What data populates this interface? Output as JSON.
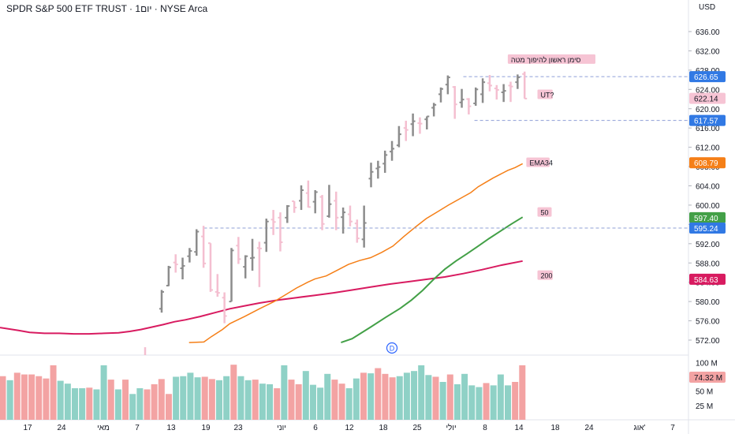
{
  "header": {
    "title": "SPDR S&P 500 ETF TRUST · 1יום · NYSE Arca",
    "currency": "USD"
  },
  "colors": {
    "up_bar": "#8c8c8c",
    "down_bar": "#f4bfd0",
    "ema34": "#f57f17",
    "ma50": "#43a047",
    "ma200": "#d81b60",
    "dashed_level": "#8f9fd6",
    "vol_up": "#8fd1c6",
    "vol_down": "#f3a3a3",
    "blue_tag": "#3179e4"
  },
  "chart_data": {
    "type": "ohlc",
    "ylim": [
      568,
      640
    ],
    "yticks": [
      "636.00",
      "632.00",
      "628.00",
      "624.00",
      "620.00",
      "616.00",
      "612.00",
      "608.00",
      "604.00",
      "600.00",
      "596.00",
      "592.00",
      "588.00",
      "584.00",
      "580.00",
      "576.00",
      "572.00"
    ],
    "xticks": [
      "17",
      "24",
      "מאי",
      "7",
      "13",
      "19",
      "23",
      "יוני",
      "6",
      "12",
      "18",
      "25",
      "יולי",
      "8",
      "14",
      "18",
      "24",
      "אוג'",
      "7"
    ],
    "bars": [
      {
        "o": 578.5,
        "h": 582.4,
        "l": 577.7,
        "c": 582.0
      },
      {
        "o": 583.3,
        "h": 587.4,
        "l": 583.2,
        "c": 587.1
      },
      {
        "o": 588.1,
        "h": 589.8,
        "l": 586.0,
        "c": 587.7
      },
      {
        "o": 586.9,
        "h": 589.1,
        "l": 584.6,
        "c": 587.4
      },
      {
        "o": 589.4,
        "h": 591.1,
        "l": 588.1,
        "c": 590.5
      },
      {
        "o": 590.3,
        "h": 595.0,
        "l": 589.5,
        "c": 594.5
      },
      {
        "o": 593.5,
        "h": 595.7,
        "l": 587.0,
        "c": 587.9
      },
      {
        "o": 592.1,
        "h": 592.1,
        "l": 582.0,
        "c": 582.4
      },
      {
        "o": 582.0,
        "h": 585.7,
        "l": 581.0,
        "c": 581.8
      },
      {
        "o": 580.8,
        "h": 581.9,
        "l": 575.5,
        "c": 577.0
      },
      {
        "o": 580.0,
        "h": 591.1,
        "l": 580.0,
        "c": 590.6
      },
      {
        "o": 591.6,
        "h": 593.4,
        "l": 587.8,
        "c": 588.8
      },
      {
        "o": 587.2,
        "h": 589.6,
        "l": 584.8,
        "c": 589.4
      },
      {
        "o": 589.0,
        "h": 593.0,
        "l": 586.4,
        "c": 589.1
      },
      {
        "o": 591.1,
        "h": 592.4,
        "l": 583.0,
        "c": 591.0
      },
      {
        "o": 592.2,
        "h": 597.2,
        "l": 590.3,
        "c": 596.6
      },
      {
        "o": 597.0,
        "h": 599.0,
        "l": 593.8,
        "c": 596.5
      },
      {
        "o": 597.4,
        "h": 598.5,
        "l": 590.4,
        "c": 592.3
      },
      {
        "o": 597.4,
        "h": 600.0,
        "l": 596.3,
        "c": 599.8
      },
      {
        "o": 600.8,
        "h": 600.8,
        "l": 598.4,
        "c": 599.5
      },
      {
        "o": 600.9,
        "h": 604.1,
        "l": 599.0,
        "c": 603.1
      },
      {
        "o": 602.5,
        "h": 605.1,
        "l": 599.5,
        "c": 599.6
      },
      {
        "o": 600.7,
        "h": 603.1,
        "l": 598.3,
        "c": 602.7
      },
      {
        "o": 601.7,
        "h": 602.1,
        "l": 594.8,
        "c": 596.1
      },
      {
        "o": 597.7,
        "h": 604.2,
        "l": 597.4,
        "c": 600.2
      },
      {
        "o": 600.9,
        "h": 602.8,
        "l": 594.8,
        "c": 597.4
      },
      {
        "o": 597.5,
        "h": 599.5,
        "l": 594.1,
        "c": 598.5
      },
      {
        "o": 598.1,
        "h": 599.9,
        "l": 595.6,
        "c": 596.6
      },
      {
        "o": 596.2,
        "h": 597.0,
        "l": 592.2,
        "c": 593.1
      },
      {
        "o": 592.9,
        "h": 599.9,
        "l": 591.2,
        "c": 596.3
      },
      {
        "o": 605.5,
        "h": 608.8,
        "l": 603.7,
        "c": 606.9
      },
      {
        "o": 607.6,
        "h": 609.2,
        "l": 605.5,
        "c": 607.9
      },
      {
        "o": 608.6,
        "h": 611.3,
        "l": 606.7,
        "c": 610.4
      },
      {
        "o": 611.1,
        "h": 613.3,
        "l": 609.2,
        "c": 611.7
      },
      {
        "o": 612.4,
        "h": 616.4,
        "l": 612.0,
        "c": 614.7
      },
      {
        "o": 616.0,
        "h": 617.5,
        "l": 613.3,
        "c": 615.6
      },
      {
        "o": 616.8,
        "h": 619.0,
        "l": 614.3,
        "c": 617.4
      },
      {
        "o": 617.0,
        "h": 618.2,
        "l": 614.8,
        "c": 616.9
      },
      {
        "o": 617.8,
        "h": 618.4,
        "l": 615.7,
        "c": 618.4
      },
      {
        "o": 620.2,
        "h": 621.2,
        "l": 618.4,
        "c": 620.8
      },
      {
        "o": 623.0,
        "h": 624.4,
        "l": 621.3,
        "c": 624.1
      },
      {
        "o": 625.0,
        "h": 626.9,
        "l": 623.0,
        "c": 626.5
      },
      {
        "o": 624.5,
        "h": 624.7,
        "l": 617.9,
        "c": 620.9
      },
      {
        "o": 621.3,
        "h": 624.1,
        "l": 620.2,
        "c": 621.9
      },
      {
        "o": 622.0,
        "h": 622.2,
        "l": 618.8,
        "c": 620.5
      },
      {
        "o": 621.1,
        "h": 624.4,
        "l": 620.6,
        "c": 624.0
      },
      {
        "o": 623.0,
        "h": 626.3,
        "l": 621.2,
        "c": 625.5
      },
      {
        "o": 625.3,
        "h": 627.0,
        "l": 623.6,
        "c": 624.8
      },
      {
        "o": 624.2,
        "h": 624.9,
        "l": 621.9,
        "c": 623.9
      },
      {
        "o": 623.4,
        "h": 625.1,
        "l": 621.4,
        "c": 623.7
      },
      {
        "o": 624.8,
        "h": 625.6,
        "l": 621.4,
        "c": 624.6
      },
      {
        "o": 625.5,
        "h": 627.1,
        "l": 624.1,
        "c": 626.5
      },
      {
        "o": 627.2,
        "h": 627.7,
        "l": 622.1,
        "c": 622.1
      }
    ],
    "ema34": [
      [
        51,
        571.5
      ],
      [
        55,
        571.6
      ],
      [
        57,
        572.7
      ],
      [
        60,
        574.2
      ],
      [
        62,
        575.4
      ],
      [
        66,
        576.9
      ],
      [
        70,
        578.5
      ],
      [
        74,
        580.0
      ],
      [
        77,
        581.4
      ],
      [
        80,
        582.8
      ],
      [
        83,
        584.0
      ],
      [
        85,
        584.7
      ],
      [
        88,
        585.3
      ],
      [
        91,
        586.5
      ],
      [
        94,
        587.7
      ],
      [
        97,
        588.5
      ],
      [
        100,
        589.1
      ],
      [
        103,
        590.2
      ],
      [
        106,
        591.5
      ],
      [
        109,
        593.5
      ],
      [
        112,
        595.4
      ],
      [
        115,
        597.2
      ],
      [
        118,
        598.6
      ],
      [
        121,
        600.0
      ],
      [
        124,
        601.3
      ],
      [
        127,
        602.6
      ],
      [
        129,
        603.8
      ],
      [
        131,
        604.7
      ],
      [
        133,
        605.6
      ],
      [
        135,
        606.4
      ],
      [
        137,
        607.2
      ],
      [
        139,
        607.8
      ],
      [
        141,
        608.6
      ]
    ],
    "ma50": [
      [
        92,
        571.5
      ],
      [
        95,
        572.3
      ],
      [
        100,
        574.7
      ],
      [
        104,
        576.7
      ],
      [
        108,
        578.6
      ],
      [
        111,
        580.3
      ],
      [
        114,
        582.3
      ],
      [
        117,
        584.6
      ],
      [
        120,
        586.7
      ],
      [
        123,
        588.4
      ],
      [
        126,
        589.9
      ],
      [
        129,
        591.5
      ],
      [
        132,
        593.1
      ],
      [
        135,
        594.6
      ],
      [
        138,
        596.1
      ],
      [
        141,
        597.5
      ]
    ],
    "ma200": [
      [
        0,
        574.6
      ],
      [
        5,
        574.0
      ],
      [
        8,
        573.6
      ],
      [
        12,
        573.4
      ],
      [
        16,
        573.4
      ],
      [
        20,
        573.3
      ],
      [
        24,
        573.3
      ],
      [
        28,
        573.4
      ],
      [
        32,
        573.5
      ],
      [
        35,
        573.8
      ],
      [
        38,
        574.2
      ],
      [
        41,
        574.7
      ],
      [
        44,
        575.2
      ],
      [
        47,
        575.8
      ],
      [
        50,
        576.2
      ],
      [
        54,
        576.9
      ],
      [
        58,
        577.7
      ],
      [
        62,
        578.5
      ],
      [
        66,
        579.1
      ],
      [
        70,
        579.7
      ],
      [
        75,
        580.3
      ],
      [
        80,
        580.8
      ],
      [
        85,
        581.3
      ],
      [
        90,
        581.8
      ],
      [
        95,
        582.4
      ],
      [
        100,
        583.0
      ],
      [
        105,
        583.6
      ],
      [
        110,
        584.1
      ],
      [
        115,
        584.6
      ],
      [
        120,
        585.1
      ],
      [
        125,
        585.8
      ],
      [
        130,
        586.6
      ],
      [
        135,
        587.5
      ],
      [
        141,
        588.4
      ]
    ],
    "levels": [
      {
        "price": 626.65,
        "label": "626.65",
        "x_from": 125
      },
      {
        "price": 617.57,
        "label": "617.57",
        "x_from": 128
      },
      {
        "price": 595.24,
        "label": "595.24",
        "x_from": 55
      }
    ],
    "price_tags": [
      {
        "price": 626.65,
        "label": "626.65",
        "bg": "#3179e4",
        "fg": "#ffffff"
      },
      {
        "price": 622.14,
        "label": "622.14",
        "bg": "#f6c4d4",
        "fg": "#131722"
      },
      {
        "price": 617.57,
        "label": "617.57",
        "bg": "#3179e4",
        "fg": "#ffffff"
      },
      {
        "price": 608.79,
        "label": "608.79",
        "bg": "#f57f17",
        "fg": "#ffffff"
      },
      {
        "price": 597.4,
        "label": "597.40",
        "bg": "#43a047",
        "fg": "#ffffff"
      },
      {
        "price": 595.24,
        "label": "595.24",
        "bg": "#3179e4",
        "fg": "#ffffff"
      },
      {
        "price": 584.63,
        "label": "584.63",
        "bg": "#d81b60",
        "fg": "#ffffff"
      }
    ],
    "annotations": [
      {
        "text": "סימן ראשון להיפוך מטה",
        "price": 630.2,
        "x_idx": 137,
        "bg": "#f6c4d4"
      },
      {
        "text": "UT?",
        "price": 622.9,
        "x_idx": 145,
        "bg": "#f6c4d4"
      },
      {
        "text": "EMA34",
        "price": 608.8,
        "x_idx": 142,
        "bg": "#f6c4d4"
      },
      {
        "text": "50",
        "price": 598.5,
        "x_idx": 145,
        "bg": "#f6c4d4"
      },
      {
        "text": "200",
        "price": 585.4,
        "x_idx": 145,
        "bg": "#f6c4d4"
      }
    ],
    "event_marker": {
      "text": "D",
      "x_idx": 104,
      "price": 569.6
    },
    "volume": {
      "ylim": [
        0,
        110
      ],
      "yticks": [
        "100 M",
        "50 M",
        "25 M"
      ],
      "current_tag": "74.32 M",
      "bars": [
        {
          "v": 76,
          "up": false
        },
        {
          "v": 69,
          "up": true
        },
        {
          "v": 82,
          "up": false
        },
        {
          "v": 79,
          "up": false
        },
        {
          "v": 79,
          "up": false
        },
        {
          "v": 76,
          "up": false
        },
        {
          "v": 72,
          "up": false
        },
        {
          "v": 95,
          "up": false
        },
        {
          "v": 68,
          "up": true
        },
        {
          "v": 63,
          "up": true
        },
        {
          "v": 55,
          "up": true
        },
        {
          "v": 55,
          "up": true
        },
        {
          "v": 56,
          "up": false
        },
        {
          "v": 53,
          "up": true
        },
        {
          "v": 95,
          "up": true
        },
        {
          "v": 70,
          "up": false
        },
        {
          "v": 53,
          "up": true
        },
        {
          "v": 70,
          "up": false
        },
        {
          "v": 45,
          "up": true
        },
        {
          "v": 55,
          "up": true
        },
        {
          "v": 53,
          "up": false
        },
        {
          "v": 62,
          "up": false
        },
        {
          "v": 71,
          "up": false
        },
        {
          "v": 45,
          "up": false
        },
        {
          "v": 75,
          "up": true
        },
        {
          "v": 76,
          "up": true
        },
        {
          "v": 82,
          "up": true
        },
        {
          "v": 74,
          "up": true
        },
        {
          "v": 75,
          "up": false
        },
        {
          "v": 71,
          "up": false
        },
        {
          "v": 69,
          "up": true
        },
        {
          "v": 76,
          "up": true
        },
        {
          "v": 96,
          "up": false
        },
        {
          "v": 76,
          "up": true
        },
        {
          "v": 69,
          "up": true
        },
        {
          "v": 70,
          "up": false
        },
        {
          "v": 63,
          "up": true
        },
        {
          "v": 62,
          "up": true
        },
        {
          "v": 55,
          "up": false
        },
        {
          "v": 95,
          "up": true
        },
        {
          "v": 70,
          "up": false
        },
        {
          "v": 62,
          "up": false
        },
        {
          "v": 85,
          "up": true
        },
        {
          "v": 61,
          "up": true
        },
        {
          "v": 56,
          "up": true
        },
        {
          "v": 80,
          "up": true
        },
        {
          "v": 70,
          "up": false
        },
        {
          "v": 63,
          "up": false
        },
        {
          "v": 55,
          "up": true
        },
        {
          "v": 72,
          "up": true
        },
        {
          "v": 82,
          "up": false
        },
        {
          "v": 81,
          "up": true
        },
        {
          "v": 90,
          "up": false
        },
        {
          "v": 80,
          "up": false
        },
        {
          "v": 74,
          "up": false
        },
        {
          "v": 76,
          "up": true
        },
        {
          "v": 82,
          "up": true
        },
        {
          "v": 85,
          "up": true
        },
        {
          "v": 95,
          "up": true
        },
        {
          "v": 78,
          "up": true
        },
        {
          "v": 75,
          "up": false
        },
        {
          "v": 66,
          "up": true
        },
        {
          "v": 79,
          "up": false
        },
        {
          "v": 62,
          "up": true
        },
        {
          "v": 80,
          "up": true
        },
        {
          "v": 60,
          "up": true
        },
        {
          "v": 57,
          "up": true
        },
        {
          "v": 64,
          "up": false
        },
        {
          "v": 60,
          "up": true
        },
        {
          "v": 79,
          "up": true
        },
        {
          "v": 60,
          "up": true
        },
        {
          "v": 66,
          "up": false
        },
        {
          "v": 95,
          "up": false
        }
      ]
    }
  }
}
